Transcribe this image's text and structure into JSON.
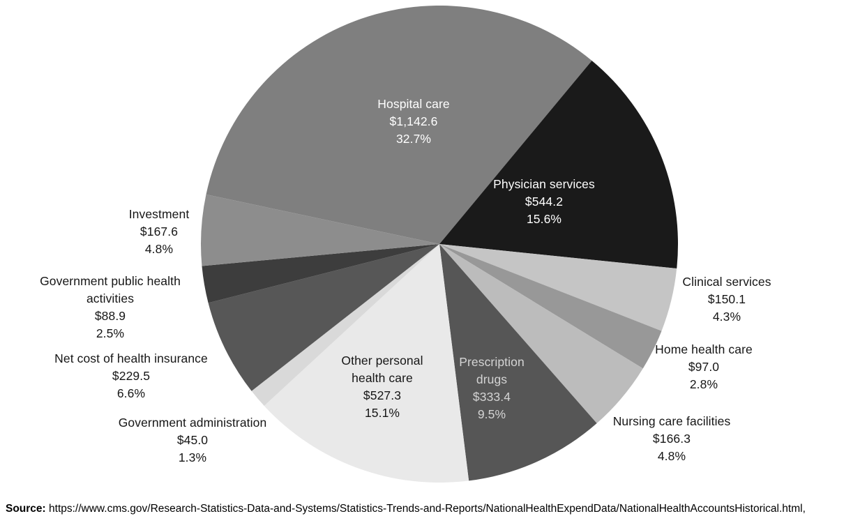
{
  "chart_data": {
    "type": "pie",
    "title": "",
    "legend": "none",
    "label_style": "category, dollar value, percent shown at each slice",
    "start_angle_deg": 282,
    "direction": "clockwise",
    "background_color": "#ffffff",
    "categories": [
      "Hospital care",
      "Physician services",
      "Clinical services",
      "Home health care",
      "Nursing care facilities",
      "Prescription drugs",
      "Other personal health care",
      "Government administration",
      "Net cost of health insurance",
      "Government public health activities",
      "Investment"
    ],
    "values": [
      1142.6,
      544.2,
      150.1,
      97.0,
      166.3,
      333.4,
      527.3,
      45.0,
      229.5,
      88.9,
      167.6
    ],
    "segments": [
      {
        "id": "hospital-care",
        "label": "Hospital care",
        "value": 1142.6,
        "value_display": "$1,142.6",
        "percent": 32.7,
        "percent_display": "32.7%",
        "color": "#7f7f7f",
        "text_color": "#ffffff"
      },
      {
        "id": "physician-services",
        "label": "Physician services",
        "value": 544.2,
        "value_display": "$544.2",
        "percent": 15.6,
        "percent_display": "15.6%",
        "color": "#1a1a1a",
        "text_color": "#ffffff"
      },
      {
        "id": "clinical-services",
        "label": "Clinical services",
        "value": 150.1,
        "value_display": "$150.1",
        "percent": 4.3,
        "percent_display": "4.3%",
        "color": "#c5c5c5",
        "text_color": "#161616"
      },
      {
        "id": "home-health-care",
        "label": "Home health care",
        "value": 97.0,
        "value_display": "$97.0",
        "percent": 2.8,
        "percent_display": "2.8%",
        "color": "#989898",
        "text_color": "#161616"
      },
      {
        "id": "nursing-care-facilities",
        "label": "Nursing care facilities",
        "value": 166.3,
        "value_display": "$166.3",
        "percent": 4.8,
        "percent_display": "4.8%",
        "color": "#bcbcbc",
        "text_color": "#161616"
      },
      {
        "id": "prescription-drugs",
        "label": "Prescription drugs",
        "value": 333.4,
        "value_display": "$333.4",
        "percent": 9.5,
        "percent_display": "9.5%",
        "color": "#565656",
        "text_color": "#d4d4d4"
      },
      {
        "id": "other-personal-health-care",
        "label": "Other personal health care",
        "value": 527.3,
        "value_display": "$527.3",
        "percent": 15.1,
        "percent_display": "15.1%",
        "color": "#e9e9e9",
        "text_color": "#161616"
      },
      {
        "id": "government-administration",
        "label": "Government administration",
        "value": 45.0,
        "value_display": "$45.0",
        "percent": 1.3,
        "percent_display": "1.3%",
        "color": "#d9d9d9",
        "text_color": "#161616"
      },
      {
        "id": "net-cost-of-health-insurance",
        "label": "Net cost of health insurance",
        "value": 229.5,
        "value_display": "$229.5",
        "percent": 6.6,
        "percent_display": "6.6%",
        "color": "#575757",
        "text_color": "#161616"
      },
      {
        "id": "government-public-health-activities",
        "label": "Government public health activities",
        "value": 88.9,
        "value_display": "$88.9",
        "percent": 2.5,
        "percent_display": "2.5%",
        "color": "#3d3d3d",
        "text_color": "#161616"
      },
      {
        "id": "investment",
        "label": "Investment",
        "value": 167.6,
        "value_display": "$167.6",
        "percent": 4.8,
        "percent_display": "4.8%",
        "color": "#8d8d8d",
        "text_color": "#161616"
      }
    ]
  },
  "source": {
    "label": "Source:",
    "text": " https://www.cms.gov/Research-Statistics-Data-and-Systems/Statistics-Trends-and-Reports/NationalHealthExpendData/NationalHealthAccountsHistorical.html,"
  }
}
